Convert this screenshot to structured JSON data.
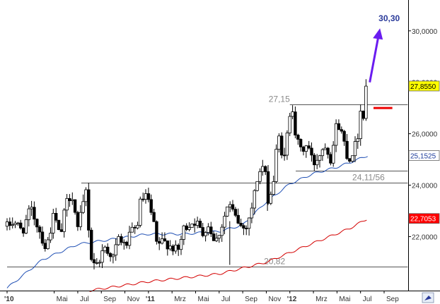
{
  "chart_data": {
    "type": "candlestick",
    "y_range": [
      19.9,
      31.2
    ],
    "y_ticks": [
      "22,0000",
      "24,0000",
      "26,0000",
      "28,0000",
      "30,0000"
    ],
    "x_ticks": [
      "'10",
      "Mai",
      "Jul",
      "Sep",
      "Nov",
      "'11",
      "Mrz",
      "Mai",
      "Jul",
      "Sep",
      "Nov",
      "'12",
      "Mrz",
      "Mai",
      "Jul",
      "Sep"
    ],
    "x_tick_months": [
      0,
      4,
      6,
      8,
      10,
      12,
      14,
      16,
      18,
      20,
      22,
      24,
      26,
      28,
      30,
      32
    ],
    "x_range_months": [
      0,
      34
    ],
    "last_month": 30.6,
    "price_path": [
      [
        0,
        22.4
      ],
      [
        0.6,
        22.6
      ],
      [
        1.3,
        22.2
      ],
      [
        2,
        23.1
      ],
      [
        2.7,
        22.3
      ],
      [
        3.3,
        21.5
      ],
      [
        4,
        22.9
      ],
      [
        4.5,
        21.9
      ],
      [
        5,
        23.3
      ],
      [
        5.5,
        23.7
      ],
      [
        6,
        22.3
      ],
      [
        6.4,
        23.1
      ],
      [
        6.7,
        23.8
      ],
      [
        7.1,
        21.2
      ],
      [
        7.6,
        20.9
      ],
      [
        8.3,
        21.6
      ],
      [
        9,
        21.2
      ],
      [
        9.5,
        22.0
      ],
      [
        10,
        21.6
      ],
      [
        10.6,
        22.2
      ],
      [
        11,
        22.3
      ],
      [
        11.3,
        23.3
      ],
      [
        11.8,
        23.6
      ],
      [
        12,
        23.3
      ],
      [
        12.4,
        22.6
      ],
      [
        12.7,
        21.7
      ],
      [
        13.3,
        21.8
      ],
      [
        14,
        21.6
      ],
      [
        14.5,
        21.4
      ],
      [
        15,
        22.3
      ],
      [
        15.5,
        22.5
      ],
      [
        16,
        22.6
      ],
      [
        16.6,
        22.1
      ],
      [
        17,
        22.5
      ],
      [
        17.7,
        21.8
      ],
      [
        18.2,
        22.4
      ],
      [
        18.8,
        23.3
      ],
      [
        19.3,
        22.8
      ],
      [
        20,
        22.3
      ],
      [
        20.4,
        22.5
      ],
      [
        20.8,
        23.2
      ],
      [
        21.3,
        24.4
      ],
      [
        21.8,
        24.8
      ],
      [
        22.2,
        23.3
      ],
      [
        22.6,
        24.1
      ],
      [
        23,
        26.0
      ],
      [
        23.5,
        24.9
      ],
      [
        24,
        26.8
      ],
      [
        24.3,
        27.1
      ],
      [
        24.5,
        25.8
      ],
      [
        25,
        25.3
      ],
      [
        25.5,
        25.6
      ],
      [
        26,
        24.8
      ],
      [
        26.5,
        25.2
      ],
      [
        27,
        25.6
      ],
      [
        27.5,
        25.0
      ],
      [
        28,
        26.5
      ],
      [
        28.5,
        25.9
      ],
      [
        29,
        24.9
      ],
      [
        29.3,
        25.3
      ],
      [
        29.7,
        25.7
      ],
      [
        30,
        26.9
      ],
      [
        30.3,
        26.7
      ],
      [
        30.6,
        27.85
      ]
    ],
    "candle_volatility": 0.32,
    "ma_blue_path": [
      [
        0,
        20.0
      ],
      [
        3,
        21.1
      ],
      [
        6,
        21.7
      ],
      [
        9,
        21.9
      ],
      [
        12,
        22.1
      ],
      [
        15,
        22.1
      ],
      [
        18,
        22.2
      ],
      [
        20,
        22.45
      ],
      [
        22,
        23.35
      ],
      [
        24,
        24.05
      ],
      [
        26,
        24.45
      ],
      [
        28,
        24.7
      ],
      [
        29.5,
        24.95
      ],
      [
        30.6,
        25.15
      ]
    ],
    "ma_red_path": [
      [
        7,
        19.9
      ],
      [
        12,
        20.25
      ],
      [
        18,
        20.55
      ],
      [
        22,
        21.0
      ],
      [
        26,
        21.75
      ],
      [
        29,
        22.3
      ],
      [
        30.6,
        22.7
      ]
    ],
    "levels": [
      {
        "value": 27.15,
        "label": "27,15",
        "start_month": 24,
        "end_month": 34
      },
      {
        "value": 24.11,
        "label": "24,11/56",
        "start_month": 6.3,
        "end_month": 34
      },
      {
        "value": 24.56,
        "label": "",
        "start_month": 24.5,
        "end_month": 34
      },
      {
        "value": 20.82,
        "label": "20,82",
        "start_month": 0,
        "end_month": 34
      }
    ],
    "red_marker": {
      "value": 27.0,
      "start_month": 31.1,
      "end_month": 32.7
    },
    "target": {
      "label": "30,30",
      "value": 30.3
    },
    "badges": [
      {
        "value": 27.855,
        "label": "27,8550",
        "fill": "#ffff00",
        "text_color": "#000000"
      },
      {
        "value": 25.1525,
        "label": "25,1525",
        "fill": "#ffffff",
        "text_color": "#1a3a9a"
      },
      {
        "value": 22.7053,
        "label": "22,7053",
        "fill": "#ff0000",
        "text_color": "#ffffff"
      }
    ],
    "colors": {
      "candle": "#000000",
      "candle_up_fill": "#ffffff",
      "ma_blue": "#1f4fb4",
      "ma_red": "#d40000",
      "levels": "#555555",
      "arrow": "#6a1cf0",
      "red_marker": "#ee0000",
      "badge_border": "#666666",
      "grid": "#000000"
    }
  },
  "footer": {
    "icon": "chart-settings-icon"
  }
}
